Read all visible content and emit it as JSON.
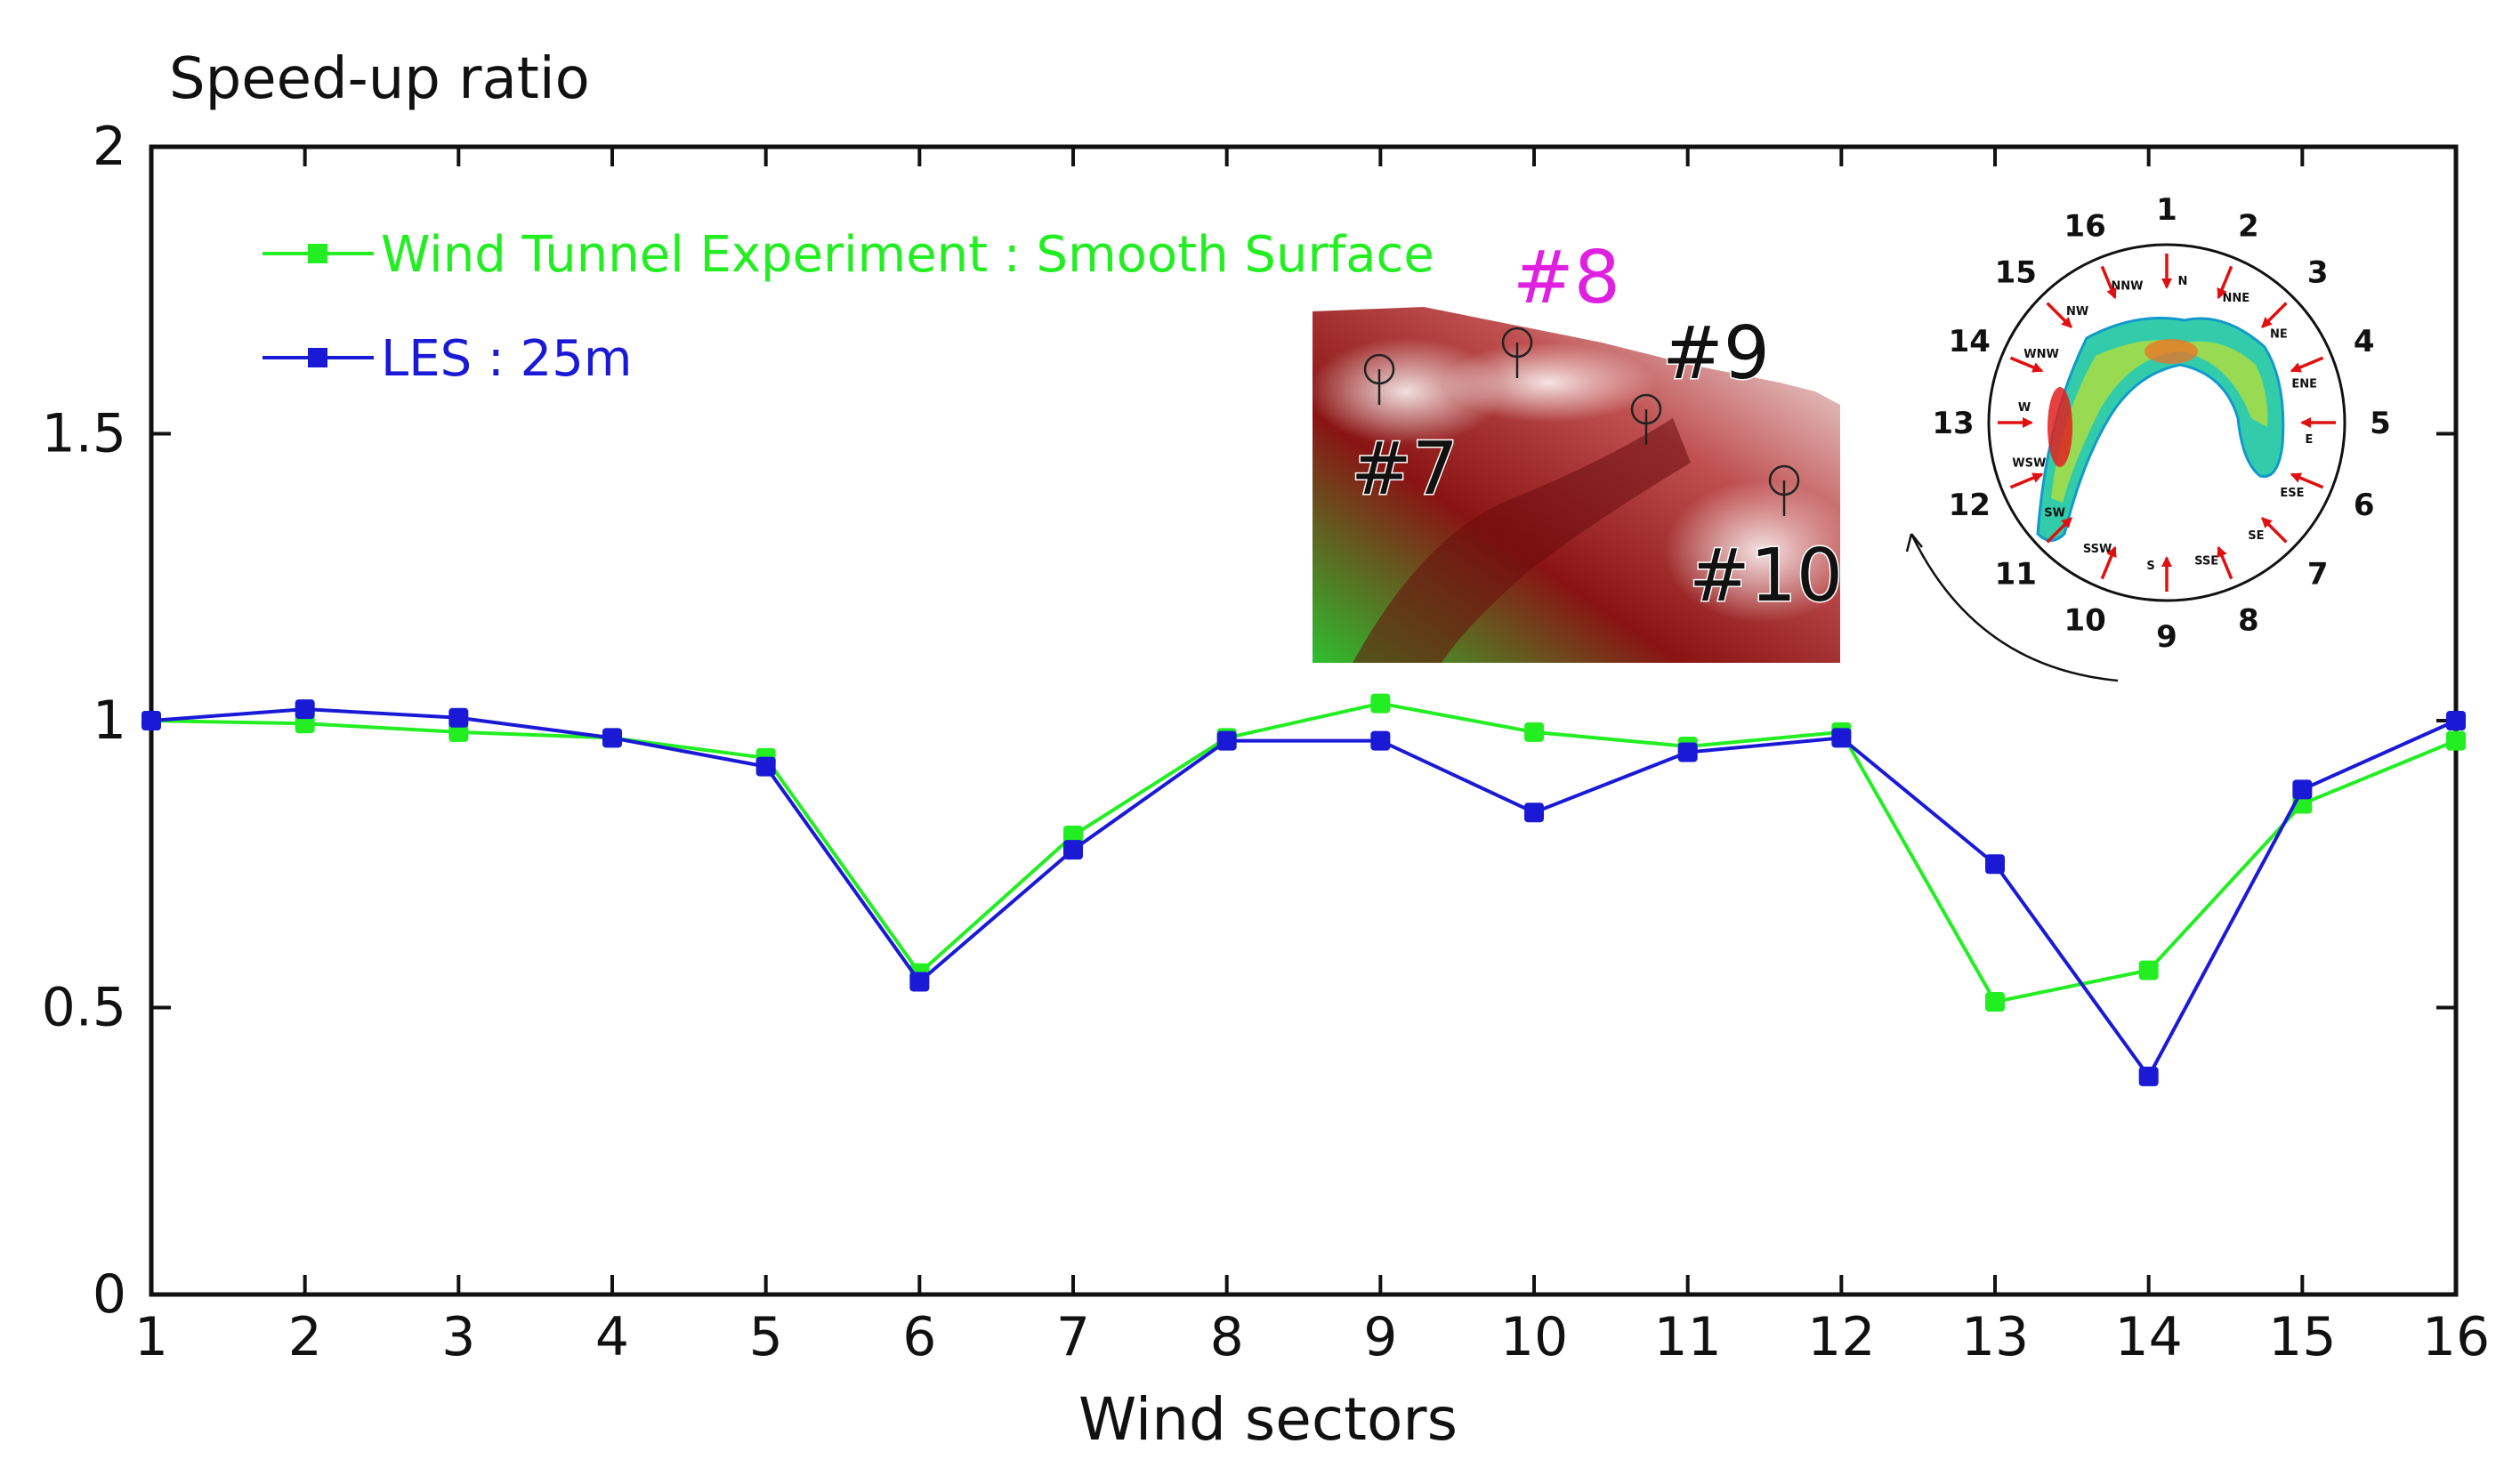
{
  "chart_data": {
    "type": "line",
    "title": "",
    "ylabel": "Speed-up ratio",
    "xlabel": "Wind sectors",
    "x": [
      1,
      2,
      3,
      4,
      5,
      6,
      7,
      8,
      9,
      10,
      11,
      12,
      13,
      14,
      15,
      16
    ],
    "xlim": [
      1,
      16
    ],
    "ylim": [
      0,
      2
    ],
    "yticks": [
      0,
      0.5,
      1,
      1.5,
      2
    ],
    "ytick_labels": [
      "0",
      "0.5",
      "1",
      "1.5",
      "2"
    ],
    "grid": false,
    "legend_position": "top-left",
    "series": [
      {
        "name": "Wind Tunnel Experiment : Smooth Surface",
        "color": "#22ee22",
        "values": [
          1.0,
          0.995,
          0.98,
          0.97,
          0.935,
          0.56,
          0.8,
          0.97,
          1.03,
          0.98,
          0.955,
          0.98,
          0.51,
          0.565,
          0.855,
          0.965
        ]
      },
      {
        "name": "LES : 25m",
        "color": "#1a1ad6",
        "values": [
          1.0,
          1.02,
          1.005,
          0.97,
          0.92,
          0.545,
          0.775,
          0.965,
          0.965,
          0.84,
          0.945,
          0.97,
          0.75,
          0.38,
          0.88,
          1.0
        ]
      }
    ]
  },
  "inset_terrain": {
    "labels": [
      "#7",
      "#8",
      "#9",
      "#10"
    ],
    "label_8_color": "#e020e0",
    "gradient_colors": [
      "#2fbf2f",
      "#8a1414",
      "#c05050",
      "#f4f4f4"
    ]
  },
  "inset_compass": {
    "sector_numbers": [
      "1",
      "2",
      "3",
      "4",
      "5",
      "6",
      "7",
      "8",
      "9",
      "10",
      "11",
      "12",
      "13",
      "14",
      "15",
      "16"
    ],
    "directions": [
      "N",
      "NNE",
      "NE",
      "ENE",
      "E",
      "ESE",
      "SE",
      "SSE",
      "S",
      "SSW",
      "SW",
      "WSW",
      "W",
      "WNW",
      "NW",
      "NNW"
    ],
    "arrow_color": "#e01010"
  }
}
